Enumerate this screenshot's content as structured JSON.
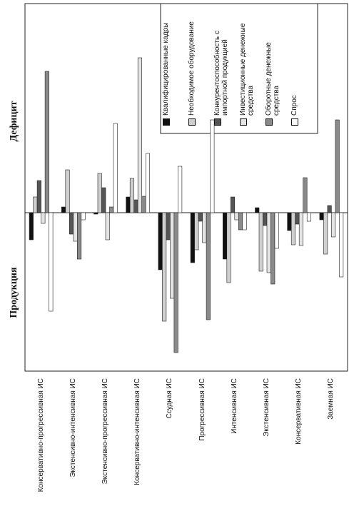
{
  "chart_data": {
    "type": "bar",
    "axis_labels": {
      "positive": "Дефицит",
      "negative": "Продукция"
    },
    "categories": [
      "Консервативно-прогрессивная ИС",
      "Экстенсивно-интенсивная ИС",
      "Экстенсивно-прогрессивная ИС",
      "Консервативно-интенсивная ИС",
      "Ссудная ИС",
      "Прогрессивная ИС",
      "Интенсивная ИС",
      "Экстенсивная ИС",
      "Консервативная ИС",
      "Заемная ИС"
    ],
    "series": [
      {
        "name": "Квалифицированные кадры",
        "color": "#111111",
        "values": [
          -3.8,
          0.8,
          -0.2,
          2.2,
          -8,
          -7,
          -6.5,
          0.7,
          -2.5,
          -1
        ]
      },
      {
        "name": "Необходимое оборудование",
        "color": "#cfcfcf",
        "values": [
          2.2,
          6,
          5.5,
          4.8,
          -15.2,
          -5.2,
          -9.8,
          -8.2,
          -4.5,
          -5.8
        ]
      },
      {
        "name": "Конкурентоспособность с импортной продукцией",
        "color": "#555555",
        "values": [
          4.5,
          -3,
          3.5,
          1.8,
          -3.8,
          -1.2,
          2.2,
          -1.8,
          -1.6,
          1
        ]
      },
      {
        "name": "Инвестиционные денежные средства",
        "color": "#e4e4e4",
        "values": [
          -1.5,
          -4,
          -3.8,
          21.7,
          -12,
          -4.2,
          -1,
          -8.4,
          -4.6,
          -3.4
        ]
      },
      {
        "name": "Оборотные денежные средства",
        "color": "#8a8a8a",
        "values": [
          19.8,
          -6.5,
          0.8,
          2.3,
          -19.6,
          -15,
          -2.4,
          -10,
          4.9,
          13
        ]
      },
      {
        "name": "Спрос",
        "color": "#ffffff",
        "values": [
          -13.8,
          -1,
          12.5,
          8.3,
          6.5,
          13,
          -2.4,
          -5,
          -1.2,
          -9
        ]
      }
    ],
    "ylim": [
      -22.2,
      29.3
    ]
  }
}
